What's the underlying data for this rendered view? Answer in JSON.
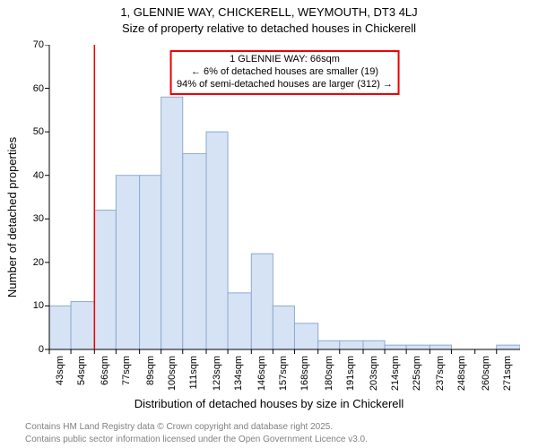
{
  "title_line1": "1, GLENNIE WAY, CHICKERELL, WEYMOUTH, DT3 4LJ",
  "title_line2": "Size of property relative to detached houses in Chickerell",
  "ylabel": "Number of detached properties",
  "xlabel": "Distribution of detached houses by size in Chickerell",
  "attribution1": "Contains HM Land Registry data © Crown copyright and database right 2025.",
  "attribution2": "Contains public sector information licensed under the Open Government Licence v3.0.",
  "annotation": {
    "line1": "1 GLENNIE WAY: 66sqm",
    "line2": "← 6% of detached houses are smaller (19)",
    "line3": "94% of semi-detached houses are larger (312) →",
    "border_color": "#ee0000",
    "x_value": 66
  },
  "chart": {
    "type": "histogram",
    "background_color": "#ffffff",
    "bar_fill": "#d6e3f4",
    "bar_stroke": "#8faad1",
    "axis_color": "#000000",
    "marker_line_color": "#ee0000",
    "grid": false,
    "ylim": [
      0,
      70
    ],
    "ytick_step": 10,
    "title_fontsize": 13,
    "label_fontsize": 13,
    "tick_fontsize": 11,
    "annotation_fontsize": 11,
    "attribution_fontsize": 10,
    "attribution_color": "#808080",
    "bar_width_ratio": 1.0,
    "categories": [
      "43sqm",
      "54sqm",
      "66sqm",
      "77sqm",
      "89sqm",
      "100sqm",
      "111sqm",
      "123sqm",
      "134sqm",
      "146sqm",
      "157sqm",
      "168sqm",
      "180sqm",
      "191sqm",
      "203sqm",
      "214sqm",
      "225sqm",
      "237sqm",
      "248sqm",
      "260sqm",
      "271sqm"
    ],
    "bin_edges_num": [
      43,
      54,
      66,
      77,
      89,
      100,
      111,
      123,
      134,
      146,
      157,
      168,
      180,
      191,
      203,
      214,
      225,
      237,
      248,
      260,
      271,
      283
    ],
    "values": [
      10,
      11,
      32,
      40,
      40,
      58,
      45,
      50,
      13,
      22,
      10,
      6,
      2,
      2,
      2,
      1,
      1,
      1,
      0,
      0,
      1
    ]
  }
}
